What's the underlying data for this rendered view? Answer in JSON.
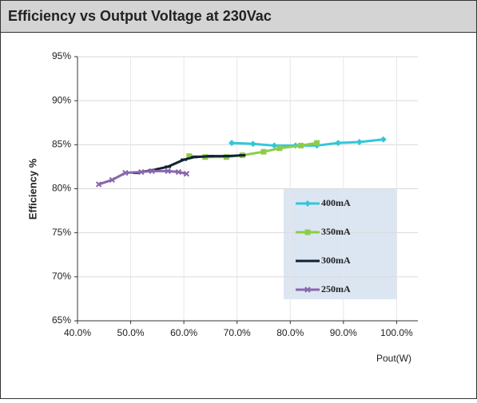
{
  "chart_data": {
    "type": "line",
    "title": "Efficiency vs Output Voltage at 230Vac",
    "ylabel": "Efficiency %",
    "xlabel": "Pout(W)",
    "xlim": [
      40,
      104
    ],
    "ylim": [
      65,
      95
    ],
    "xticks": [
      {
        "value": 40,
        "label": "40.0%"
      },
      {
        "value": 50,
        "label": "50.0%"
      },
      {
        "value": 60,
        "label": "60.0%"
      },
      {
        "value": 70,
        "label": "70.0%"
      },
      {
        "value": 80,
        "label": "80.0%"
      },
      {
        "value": 90,
        "label": "90.0%"
      },
      {
        "value": 100,
        "label": "100.0%"
      }
    ],
    "yticks": [
      {
        "value": 65,
        "label": "65%"
      },
      {
        "value": 70,
        "label": "70%"
      },
      {
        "value": 75,
        "label": "75%"
      },
      {
        "value": 80,
        "label": "80%"
      },
      {
        "value": 85,
        "label": "85%"
      },
      {
        "value": 90,
        "label": "90%"
      },
      {
        "value": 95,
        "label": "95%"
      }
    ],
    "grid": true,
    "legend": "lower right",
    "series": [
      {
        "name": "400mA",
        "color": "#33c6da",
        "x": [
          69,
          73,
          77,
          81,
          85,
          89,
          93,
          97.5
        ],
        "values": [
          85.2,
          85.1,
          84.9,
          84.9,
          84.9,
          85.2,
          85.3,
          85.6
        ]
      },
      {
        "name": "350mA",
        "color": "#8dcc4a",
        "x": [
          61,
          64,
          68,
          71,
          75,
          78,
          82,
          85
        ],
        "values": [
          83.7,
          83.6,
          83.6,
          83.8,
          84.2,
          84.6,
          84.9,
          85.2
        ]
      },
      {
        "name": "300mA",
        "color": "#112233",
        "x": [
          51,
          54,
          57,
          60,
          62,
          65,
          68,
          71
        ],
        "values": [
          81.8,
          82.1,
          82.5,
          83.3,
          83.6,
          83.7,
          83.7,
          83.8
        ]
      },
      {
        "name": "250mA",
        "color": "#8a66ac",
        "x": [
          44,
          46.5,
          49,
          52,
          54,
          57,
          59,
          60.5
        ],
        "values": [
          80.5,
          81.0,
          81.8,
          81.9,
          82.0,
          82.0,
          81.9,
          81.7
        ]
      }
    ]
  }
}
